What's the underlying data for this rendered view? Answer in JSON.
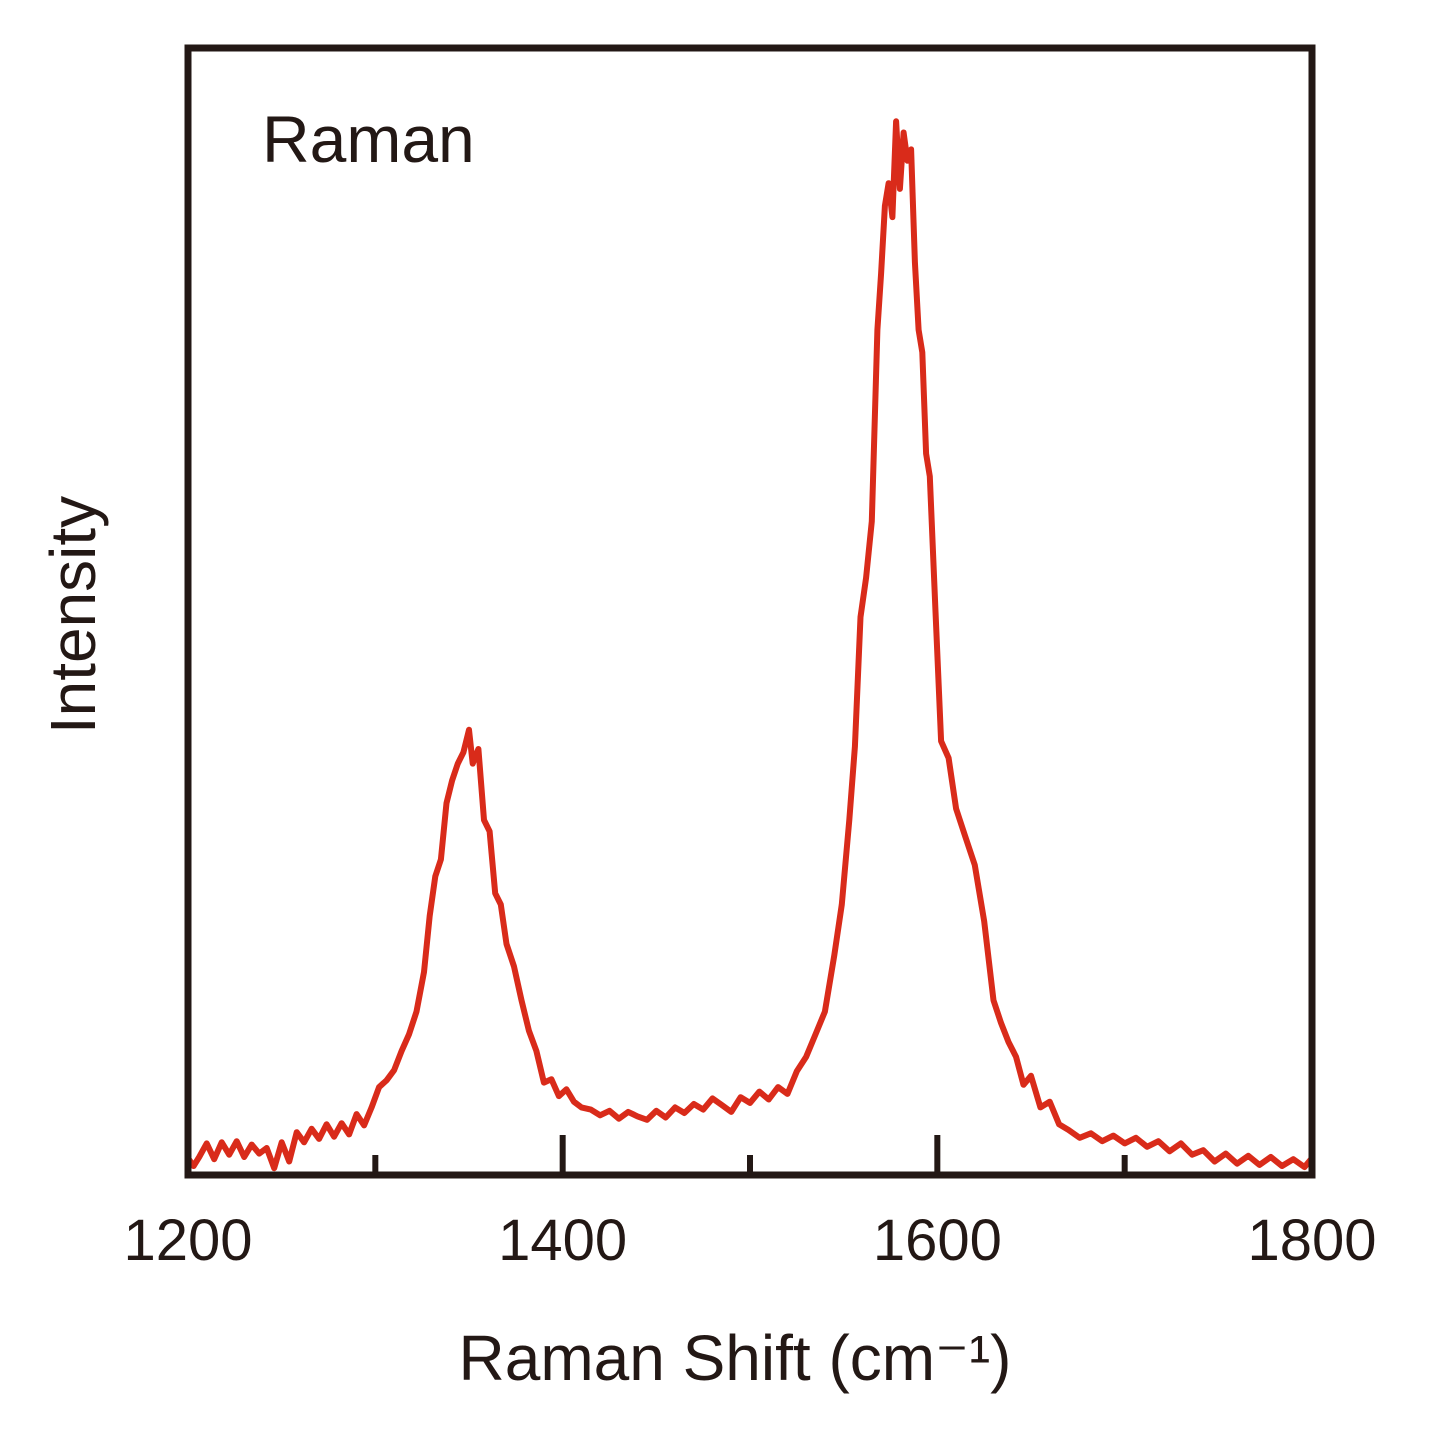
{
  "chart_data": {
    "type": "line",
    "title": "Raman",
    "xlabel": "Raman Shift (cm⁻¹)",
    "ylabel": "Intensity",
    "color": "#d92b1a",
    "xlim": [
      1200,
      1800
    ],
    "xticks": [
      1200,
      1400,
      1600,
      1800
    ],
    "xminorticks": [
      1300,
      1500,
      1700
    ],
    "ylim": [
      0,
      100
    ],
    "x": [
      1200,
      1203,
      1206,
      1210,
      1214,
      1218,
      1222,
      1226,
      1230,
      1234,
      1238,
      1242,
      1246,
      1250,
      1254,
      1258,
      1262,
      1266,
      1270,
      1274,
      1278,
      1282,
      1286,
      1290,
      1294,
      1298,
      1302,
      1306,
      1310,
      1314,
      1318,
      1322,
      1326,
      1329,
      1332,
      1335,
      1338,
      1341,
      1344,
      1347,
      1350,
      1352,
      1355,
      1358,
      1361,
      1364,
      1367,
      1370,
      1374,
      1378,
      1382,
      1386,
      1390,
      1394,
      1398,
      1402,
      1406,
      1410,
      1415,
      1420,
      1425,
      1430,
      1435,
      1440,
      1445,
      1450,
      1455,
      1460,
      1465,
      1470,
      1475,
      1480,
      1485,
      1490,
      1495,
      1500,
      1505,
      1510,
      1515,
      1520,
      1525,
      1530,
      1535,
      1540,
      1545,
      1549,
      1553,
      1556,
      1559,
      1562,
      1565,
      1568,
      1570,
      1572,
      1574,
      1576,
      1578,
      1580,
      1582,
      1584,
      1586,
      1588,
      1590,
      1592,
      1594,
      1596,
      1599,
      1602,
      1606,
      1610,
      1615,
      1620,
      1625,
      1630,
      1634,
      1638,
      1642,
      1646,
      1650,
      1655,
      1660,
      1665,
      1670,
      1676,
      1682,
      1688,
      1694,
      1700,
      1706,
      1712,
      1718,
      1724,
      1730,
      1736,
      1742,
      1748,
      1754,
      1760,
      1766,
      1772,
      1778,
      1784,
      1790,
      1796,
      1800
    ],
    "values": [
      1.5,
      0.8,
      1.6,
      2.8,
      1.4,
      2.9,
      1.8,
      3.0,
      1.6,
      2.7,
      1.9,
      2.4,
      0.6,
      2.9,
      1.2,
      3.8,
      2.9,
      4.1,
      3.2,
      4.5,
      3.4,
      4.6,
      3.6,
      5.4,
      4.4,
      6.0,
      7.8,
      8.4,
      9.3,
      11.0,
      12.5,
      14.5,
      18.0,
      23.0,
      26.5,
      28.0,
      33.0,
      35.0,
      36.5,
      37.5,
      39.5,
      36.5,
      37.8,
      31.5,
      30.5,
      25.0,
      24.0,
      20.5,
      18.5,
      15.5,
      12.8,
      11.0,
      8.2,
      8.5,
      7.0,
      7.6,
      6.5,
      6.0,
      5.8,
      5.3,
      5.7,
      5.0,
      5.6,
      5.2,
      4.9,
      5.7,
      5.1,
      6.0,
      5.5,
      6.3,
      5.8,
      6.8,
      6.2,
      5.6,
      6.9,
      6.4,
      7.4,
      6.7,
      7.8,
      7.2,
      9.2,
      10.5,
      12.5,
      14.5,
      19.5,
      24.0,
      31.5,
      38.0,
      49.5,
      53.0,
      58.0,
      75.0,
      80.0,
      86.0,
      88.0,
      85.0,
      93.5,
      87.5,
      92.5,
      90.0,
      91.0,
      81.0,
      75.0,
      73.0,
      64.0,
      62.0,
      50.0,
      38.5,
      37.0,
      32.5,
      30.0,
      27.5,
      22.5,
      15.5,
      13.5,
      11.8,
      10.5,
      8.0,
      8.8,
      6.0,
      6.5,
      4.5,
      4.0,
      3.3,
      3.7,
      3.0,
      3.5,
      2.8,
      3.3,
      2.5,
      3.0,
      2.1,
      2.8,
      1.8,
      2.2,
      1.2,
      1.9,
      1.0,
      1.7,
      0.9,
      1.6,
      0.8,
      1.4,
      0.7,
      1.5
    ]
  }
}
